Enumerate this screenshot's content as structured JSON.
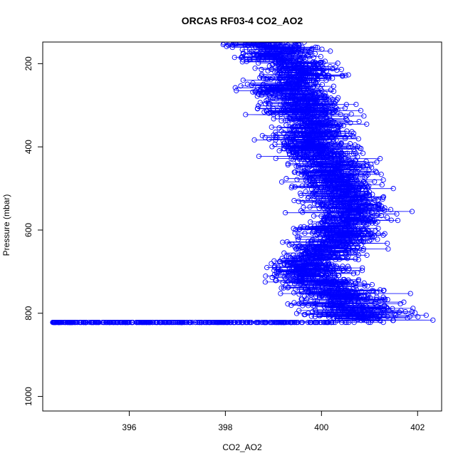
{
  "chart_data": {
    "type": "scatter",
    "title": "ORCAS RF03-4 CO2_AO2",
    "xlabel": "CO2_AO2",
    "ylabel": "Pressure (mbar)",
    "xlim": [
      394.2,
      402.5
    ],
    "ylim": [
      1035,
      148
    ],
    "y_reversed": true,
    "x_ticks": [
      396,
      398,
      400,
      402
    ],
    "y_ticks": [
      200,
      400,
      600,
      800,
      1000
    ],
    "grid": false,
    "legend": "none",
    "marker": "open-circle",
    "connected_lines": true,
    "color": "#0000ff",
    "series": [
      {
        "profile": [
          [
            398.9,
            150
          ],
          [
            399.3,
            170
          ],
          [
            399.0,
            185
          ],
          [
            399.4,
            200
          ],
          [
            399.6,
            220
          ],
          [
            399.5,
            240
          ],
          [
            399.2,
            260
          ],
          [
            399.6,
            280
          ],
          [
            399.7,
            300
          ],
          [
            399.5,
            320
          ],
          [
            399.8,
            340
          ],
          [
            399.9,
            360
          ],
          [
            399.7,
            380
          ],
          [
            399.9,
            400
          ],
          [
            400.0,
            420
          ],
          [
            400.2,
            440
          ],
          [
            400.3,
            460
          ],
          [
            400.3,
            480
          ],
          [
            400.4,
            500
          ],
          [
            400.5,
            520
          ],
          [
            400.5,
            540
          ],
          [
            400.6,
            560
          ],
          [
            400.5,
            580
          ],
          [
            400.4,
            600
          ],
          [
            400.5,
            620
          ],
          [
            400.1,
            640
          ],
          [
            400.0,
            660
          ],
          [
            399.8,
            680
          ],
          [
            399.7,
            700
          ],
          [
            399.9,
            720
          ],
          [
            400.2,
            740
          ],
          [
            400.4,
            760
          ],
          [
            400.6,
            780
          ],
          [
            400.7,
            800
          ],
          [
            400.9,
            815
          ]
        ],
        "spread": [
          [
            150,
            1.6
          ],
          [
            200,
            1.6
          ],
          [
            300,
            1.7
          ],
          [
            400,
            1.5
          ],
          [
            500,
            1.6
          ],
          [
            600,
            1.6
          ],
          [
            700,
            1.5
          ],
          [
            760,
            1.9
          ],
          [
            800,
            2.2
          ],
          [
            818,
            2.4
          ]
        ],
        "surface_level": {
          "pressure": 822,
          "x_min": 394.4,
          "x_max": 401.3
        }
      }
    ]
  }
}
